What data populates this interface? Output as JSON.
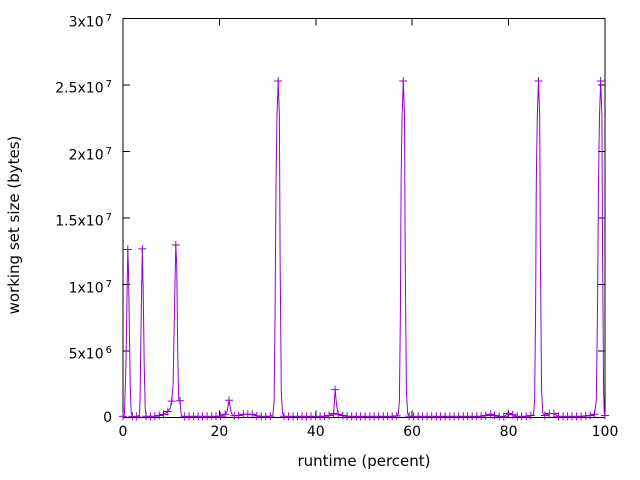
{
  "chart_data": {
    "type": "line",
    "title": "",
    "xlabel": "runtime (percent)",
    "ylabel": "working set size (bytes)",
    "xlim": [
      0,
      100
    ],
    "ylim": [
      0,
      30000000
    ],
    "grid": false,
    "legend": "none",
    "x_ticks": [
      {
        "v": 0,
        "label": "0"
      },
      {
        "v": 20,
        "label": "20"
      },
      {
        "v": 40,
        "label": "40"
      },
      {
        "v": 60,
        "label": "60"
      },
      {
        "v": 80,
        "label": "80"
      },
      {
        "v": 100,
        "label": "100"
      }
    ],
    "y_ticks": [
      {
        "v": 0,
        "base": "0",
        "exp": ""
      },
      {
        "v": 5000000,
        "base": "5x10",
        "exp": "6"
      },
      {
        "v": 10000000,
        "base": "1x10",
        "exp": "7"
      },
      {
        "v": 15000000,
        "base": "1.5x10",
        "exp": "7"
      },
      {
        "v": 20000000,
        "base": "2x10",
        "exp": "7"
      },
      {
        "v": 25000000,
        "base": "2.5x10",
        "exp": "7"
      },
      {
        "v": 30000000,
        "base": "3x10",
        "exp": "7"
      }
    ],
    "style": {
      "line_color": "#9400d3",
      "axis_color": "#000000",
      "text_color": "#000000",
      "background": "#ffffff",
      "marker": "plus"
    },
    "series": [
      {
        "name": "working set size",
        "points": [
          [
            0,
            80000,
            1
          ],
          [
            0.3,
            200000,
            0
          ],
          [
            0.5,
            2500000,
            0
          ],
          [
            0.65,
            4600000,
            0
          ],
          [
            0.75,
            7000000,
            0
          ],
          [
            0.85,
            9500000,
            0
          ],
          [
            1.0,
            12630000,
            1
          ],
          [
            1.15,
            11000000,
            0
          ],
          [
            1.3,
            7000000,
            0
          ],
          [
            1.5,
            2500000,
            0
          ],
          [
            1.7,
            300000,
            0
          ],
          [
            1.95,
            80000,
            1
          ],
          [
            2.85,
            80000,
            1
          ],
          [
            3.4,
            150000,
            0
          ],
          [
            3.55,
            1500000,
            0
          ],
          [
            3.7,
            5500000,
            0
          ],
          [
            3.85,
            9500000,
            0
          ],
          [
            4.0,
            12680000,
            1
          ],
          [
            4.2,
            9500000,
            0
          ],
          [
            4.4,
            4000000,
            0
          ],
          [
            4.6,
            700000,
            0
          ],
          [
            4.8,
            100000,
            1
          ],
          [
            5.7,
            80000,
            1
          ],
          [
            6.6,
            100000,
            1
          ],
          [
            7.5,
            150000,
            1
          ],
          [
            8.4,
            230000,
            1
          ],
          [
            9.3,
            450000,
            1
          ],
          [
            9.8,
            700000,
            0
          ],
          [
            10.1,
            1230000,
            1
          ],
          [
            10.4,
            2500000,
            0
          ],
          [
            10.6,
            6500000,
            0
          ],
          [
            10.8,
            10500000,
            0
          ],
          [
            10.95,
            12970000,
            1
          ],
          [
            11.15,
            11500000,
            0
          ],
          [
            11.35,
            5000000,
            0
          ],
          [
            11.55,
            1300000,
            0
          ],
          [
            11.85,
            1260000,
            1
          ],
          [
            12.05,
            250000,
            0
          ],
          [
            12.3,
            80000,
            0
          ],
          [
            12.8,
            80000,
            1
          ],
          [
            13.7,
            80000,
            1
          ],
          [
            14.65,
            80000,
            1
          ],
          [
            15.6,
            80000,
            1
          ],
          [
            16.5,
            80000,
            1
          ],
          [
            17.45,
            80000,
            1
          ],
          [
            18.4,
            80000,
            1
          ],
          [
            19.3,
            80000,
            1
          ],
          [
            20.25,
            100000,
            1
          ],
          [
            21.2,
            250000,
            1
          ],
          [
            21.6,
            450000,
            0
          ],
          [
            22.0,
            1300000,
            1
          ],
          [
            22.4,
            450000,
            0
          ],
          [
            22.7,
            180000,
            0
          ],
          [
            23.1,
            130000,
            1
          ],
          [
            24.0,
            150000,
            1
          ],
          [
            24.95,
            250000,
            1
          ],
          [
            25.9,
            250000,
            1
          ],
          [
            26.8,
            250000,
            1
          ],
          [
            27.3,
            200000,
            0
          ],
          [
            27.75,
            120000,
            1
          ],
          [
            28.7,
            80000,
            1
          ],
          [
            29.6,
            80000,
            1
          ],
          [
            30.55,
            100000,
            1
          ],
          [
            31.1,
            200000,
            0
          ],
          [
            31.35,
            1200000,
            0
          ],
          [
            31.55,
            8000000,
            0
          ],
          [
            31.75,
            17700000,
            0
          ],
          [
            31.95,
            22700000,
            0
          ],
          [
            32.2,
            25300000,
            1
          ],
          [
            32.45,
            22700000,
            0
          ],
          [
            32.6,
            12000000,
            0
          ],
          [
            32.85,
            2000000,
            0
          ],
          [
            33.1,
            300000,
            0
          ],
          [
            33.4,
            100000,
            1
          ],
          [
            34.35,
            80000,
            1
          ],
          [
            35.3,
            80000,
            1
          ],
          [
            36.2,
            80000,
            1
          ],
          [
            37.15,
            80000,
            1
          ],
          [
            38.1,
            80000,
            1
          ],
          [
            39.0,
            80000,
            1
          ],
          [
            39.95,
            80000,
            1
          ],
          [
            40.9,
            80000,
            1
          ],
          [
            41.8,
            100000,
            1
          ],
          [
            42.75,
            150000,
            1
          ],
          [
            43.7,
            300000,
            1
          ],
          [
            44.0,
            2100000,
            1
          ],
          [
            44.35,
            800000,
            0
          ],
          [
            44.65,
            250000,
            1
          ],
          [
            45.6,
            150000,
            1
          ],
          [
            46.5,
            100000,
            1
          ],
          [
            47.45,
            80000,
            1
          ],
          [
            48.4,
            80000,
            1
          ],
          [
            49.3,
            80000,
            1
          ],
          [
            50.25,
            80000,
            1
          ],
          [
            51.2,
            80000,
            1
          ],
          [
            52.1,
            80000,
            1
          ],
          [
            53.05,
            80000,
            1
          ],
          [
            54.0,
            80000,
            1
          ],
          [
            54.9,
            80000,
            1
          ],
          [
            55.85,
            80000,
            1
          ],
          [
            56.8,
            120000,
            1
          ],
          [
            57.1,
            200000,
            0
          ],
          [
            57.35,
            1200000,
            0
          ],
          [
            57.55,
            8000000,
            0
          ],
          [
            57.7,
            17700000,
            0
          ],
          [
            57.9,
            22700000,
            0
          ],
          [
            58.15,
            25300000,
            1
          ],
          [
            58.4,
            22700000,
            0
          ],
          [
            58.55,
            12000000,
            0
          ],
          [
            58.8,
            2000000,
            0
          ],
          [
            59.05,
            300000,
            0
          ],
          [
            59.35,
            100000,
            1
          ],
          [
            60.3,
            80000,
            1
          ],
          [
            61.25,
            80000,
            1
          ],
          [
            62.15,
            80000,
            1
          ],
          [
            63.1,
            80000,
            1
          ],
          [
            64.05,
            80000,
            1
          ],
          [
            65.0,
            80000,
            1
          ],
          [
            65.9,
            80000,
            1
          ],
          [
            66.85,
            80000,
            1
          ],
          [
            67.8,
            80000,
            1
          ],
          [
            68.7,
            80000,
            1
          ],
          [
            69.65,
            80000,
            1
          ],
          [
            70.6,
            80000,
            1
          ],
          [
            71.5,
            80000,
            1
          ],
          [
            72.45,
            80000,
            1
          ],
          [
            73.4,
            80000,
            1
          ],
          [
            74.3,
            100000,
            1
          ],
          [
            75.25,
            150000,
            1
          ],
          [
            76.2,
            250000,
            1
          ],
          [
            77.1,
            150000,
            1
          ],
          [
            78.05,
            80000,
            1
          ],
          [
            79.0,
            50000,
            1
          ],
          [
            79.9,
            300000,
            1
          ],
          [
            80.85,
            200000,
            1
          ],
          [
            81.8,
            80000,
            1
          ],
          [
            82.7,
            80000,
            1
          ],
          [
            83.65,
            80000,
            1
          ],
          [
            84.6,
            150000,
            1
          ],
          [
            85.15,
            200000,
            0
          ],
          [
            85.4,
            1200000,
            0
          ],
          [
            85.6,
            8000000,
            0
          ],
          [
            85.75,
            17700000,
            0
          ],
          [
            85.95,
            22700000,
            0
          ],
          [
            86.2,
            25300000,
            1
          ],
          [
            86.45,
            22700000,
            0
          ],
          [
            86.6,
            12000000,
            0
          ],
          [
            86.85,
            2000000,
            0
          ],
          [
            87.1,
            300000,
            0
          ],
          [
            87.5,
            150000,
            1
          ],
          [
            88.45,
            300000,
            1
          ],
          [
            89.4,
            300000,
            1
          ],
          [
            89.8,
            200000,
            0
          ],
          [
            90.35,
            80000,
            1
          ],
          [
            91.3,
            80000,
            1
          ],
          [
            92.25,
            80000,
            1
          ],
          [
            93.15,
            80000,
            1
          ],
          [
            94.1,
            80000,
            1
          ],
          [
            95.05,
            80000,
            1
          ],
          [
            96.0,
            120000,
            1
          ],
          [
            96.9,
            150000,
            1
          ],
          [
            97.8,
            250000,
            1
          ],
          [
            98.2,
            1200000,
            0
          ],
          [
            98.45,
            8000000,
            0
          ],
          [
            98.65,
            17700000,
            0
          ],
          [
            98.85,
            22700000,
            0
          ],
          [
            99.1,
            25300000,
            1
          ],
          [
            99.35,
            22700000,
            0
          ],
          [
            99.5,
            12000000,
            0
          ],
          [
            99.7,
            2000000,
            0
          ],
          [
            99.85,
            300000,
            0
          ],
          [
            100,
            150000,
            1
          ]
        ]
      }
    ]
  }
}
